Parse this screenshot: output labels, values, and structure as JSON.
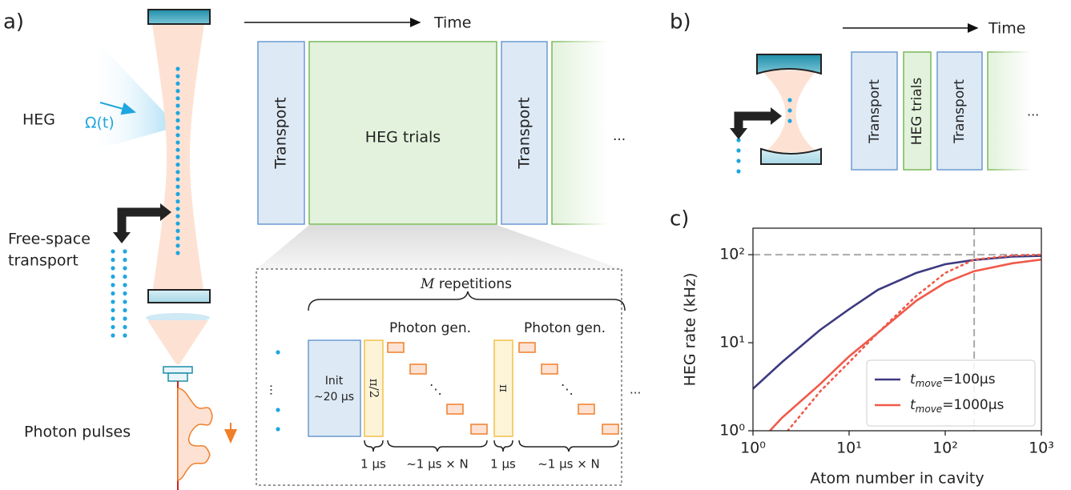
{
  "panel_a": {
    "label": "a)",
    "time_label": "Time",
    "blocks": [
      "Transport",
      "HEG trials",
      "Transport"
    ],
    "ellipsis": "...",
    "heg_label": "HEG",
    "omega_label": "Ω(t)",
    "transport_label": [
      "Free-space",
      "transport"
    ],
    "photon_label": "Photon pulses",
    "inset": {
      "repetitions_symbol": "M",
      "repetitions_text": " repetitions",
      "photon_gen": [
        "Photon gen.",
        "Photon gen."
      ],
      "init": [
        "Init",
        "~20 μs"
      ],
      "half_pi": "π/2",
      "pi": "π",
      "durations": [
        "1 μs",
        "~1 μs × N",
        "1 μs",
        "~1 μs × N"
      ],
      "ellipsis_left": "...",
      "ellipsis_right": "...",
      "ellipsis_stairs": [
        "⋱",
        "⋱"
      ]
    }
  },
  "panel_b": {
    "label": "b)",
    "time_label": "Time",
    "blocks": [
      "Transport",
      "HEG trials",
      "Transport"
    ],
    "ellipsis": "..."
  },
  "panel_c": {
    "label": "c)"
  },
  "chart_data": {
    "type": "line",
    "xlabel": "Atom number in cavity",
    "ylabel": "HEG rate (kHz)",
    "log_x": true,
    "log_y": true,
    "xlim": [
      1,
      1000
    ],
    "ylim": [
      1,
      200
    ],
    "xticks": [
      {
        "value": 1,
        "label": "10⁰"
      },
      {
        "value": 10,
        "label": "10¹"
      },
      {
        "value": 100,
        "label": "10²"
      },
      {
        "value": 1000,
        "label": "10³"
      }
    ],
    "yticks": [
      {
        "value": 1,
        "label": "10⁰"
      },
      {
        "value": 10,
        "label": "10¹"
      },
      {
        "value": 100,
        "label": "10²"
      }
    ],
    "hlines": [
      100
    ],
    "vlines": [
      200
    ],
    "legend": "lower right",
    "series": [
      {
        "name_parts": [
          "t",
          "move",
          "=100μs"
        ],
        "color": "#3d3a80",
        "style": "solid",
        "x": [
          1,
          2,
          5,
          10,
          20,
          50,
          100,
          200,
          500,
          1000
        ],
        "values": [
          3,
          6,
          14,
          24,
          40,
          62,
          78,
          87,
          95,
          97
        ]
      },
      {
        "name_parts": [
          "t",
          "move",
          "=1000μs"
        ],
        "color": "#f05a4a",
        "style": "solid",
        "x": [
          1.5,
          2,
          5,
          10,
          20,
          50,
          100,
          200,
          500,
          1000
        ],
        "values": [
          1.0,
          1.4,
          3.4,
          7,
          13,
          30,
          48,
          65,
          80,
          88
        ]
      },
      {
        "color": "#f05a4a",
        "style": "dotted",
        "x": [
          2.3,
          5,
          10,
          20,
          50,
          100,
          200,
          500,
          1000
        ],
        "values": [
          1.0,
          2.8,
          6,
          13,
          34,
          62,
          88,
          98,
          100
        ]
      }
    ]
  }
}
